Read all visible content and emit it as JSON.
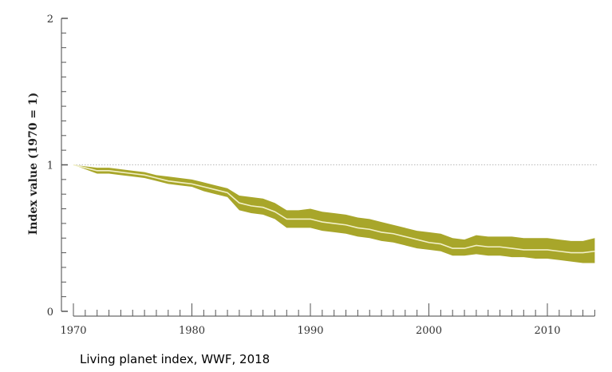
{
  "caption": "Living planet index, WWF, 2018",
  "chart_data": {
    "type": "line",
    "title": "",
    "xlabel": "",
    "ylabel": "Index value (1970 = 1)",
    "xlim": [
      1970,
      2014
    ],
    "ylim": [
      0,
      2
    ],
    "x_ticks": [
      "1970",
      "1980",
      "1990",
      "2000",
      "2010"
    ],
    "y_ticks": [
      "0",
      "1",
      "2"
    ],
    "reference_line": 1,
    "grid": false,
    "colors": {
      "band": "#a8a62a",
      "line": "#f2f0c8",
      "reference": "#bbbbbb"
    },
    "x": [
      1970,
      1971,
      1972,
      1973,
      1974,
      1975,
      1976,
      1977,
      1978,
      1979,
      1980,
      1981,
      1982,
      1983,
      1984,
      1985,
      1986,
      1987,
      1988,
      1989,
      1990,
      1991,
      1992,
      1993,
      1994,
      1995,
      1996,
      1997,
      1998,
      1999,
      2000,
      2001,
      2002,
      2003,
      2004,
      2005,
      2006,
      2007,
      2008,
      2009,
      2010,
      2011,
      2012,
      2013,
      2014
    ],
    "series": [
      {
        "values": [
          1.0,
          0.98,
          0.96,
          0.96,
          0.95,
          0.94,
          0.93,
          0.91,
          0.89,
          0.88,
          0.87,
          0.85,
          0.83,
          0.81,
          0.74,
          0.72,
          0.71,
          0.68,
          0.63,
          0.63,
          0.63,
          0.61,
          0.6,
          0.59,
          0.57,
          0.56,
          0.54,
          0.53,
          0.51,
          0.49,
          0.47,
          0.46,
          0.43,
          0.43,
          0.45,
          0.44,
          0.44,
          0.43,
          0.42,
          0.42,
          0.42,
          0.41,
          0.4,
          0.4,
          0.41
        ],
        "lower": [
          1.0,
          0.97,
          0.94,
          0.94,
          0.93,
          0.92,
          0.91,
          0.89,
          0.87,
          0.86,
          0.85,
          0.82,
          0.8,
          0.78,
          0.69,
          0.67,
          0.66,
          0.63,
          0.57,
          0.57,
          0.57,
          0.55,
          0.54,
          0.53,
          0.51,
          0.5,
          0.48,
          0.47,
          0.45,
          0.43,
          0.42,
          0.41,
          0.38,
          0.38,
          0.39,
          0.38,
          0.38,
          0.37,
          0.37,
          0.36,
          0.36,
          0.35,
          0.34,
          0.33,
          0.33
        ],
        "upper": [
          1.0,
          0.99,
          0.98,
          0.98,
          0.97,
          0.96,
          0.95,
          0.93,
          0.92,
          0.91,
          0.9,
          0.88,
          0.86,
          0.84,
          0.79,
          0.78,
          0.77,
          0.74,
          0.69,
          0.69,
          0.7,
          0.68,
          0.67,
          0.66,
          0.64,
          0.63,
          0.61,
          0.59,
          0.57,
          0.55,
          0.54,
          0.53,
          0.5,
          0.49,
          0.52,
          0.51,
          0.51,
          0.51,
          0.5,
          0.5,
          0.5,
          0.49,
          0.48,
          0.48,
          0.5
        ]
      }
    ]
  }
}
